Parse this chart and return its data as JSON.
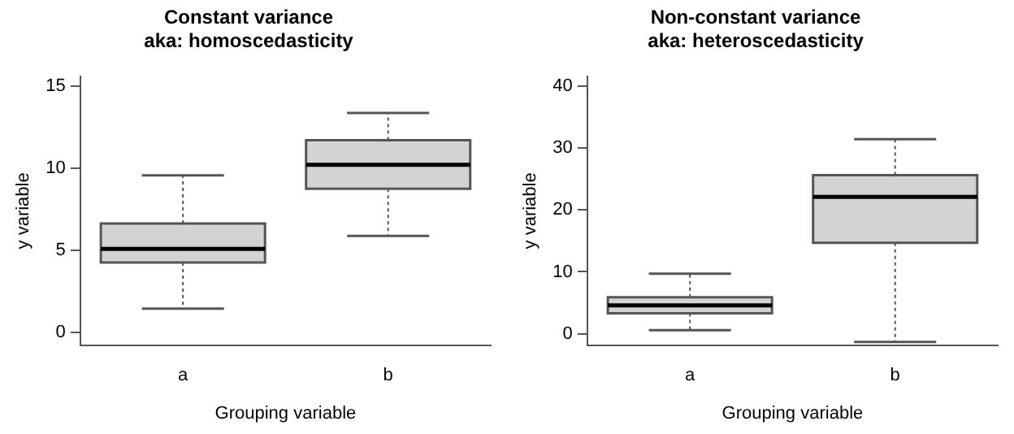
{
  "chart_data": [
    {
      "type": "box",
      "title": "Constant variance",
      "subtitle": "aka: homoscedasticity",
      "xlabel": "Grouping variable",
      "ylabel": "y variable",
      "categories": [
        "a",
        "b"
      ],
      "color": "#d3d3d3",
      "boxes": [
        {
          "low": 1.45,
          "q1": 4.25,
          "median": 5.08,
          "q3": 6.63,
          "high": 9.56
        },
        {
          "low": 5.87,
          "q1": 8.74,
          "median": 10.2,
          "q3": 11.7,
          "high": 13.35
        }
      ],
      "ylim": [
        -0.8,
        15.6
      ],
      "yticks": [
        0,
        5,
        10,
        15
      ],
      "grid": false,
      "legend": false
    },
    {
      "type": "box",
      "title": "Non-constant variance",
      "subtitle": "aka: heteroscedasticity",
      "xlabel": "Grouping variable",
      "ylabel": "y variable",
      "categories": [
        "a",
        "b"
      ],
      "color": "#d3d3d3",
      "boxes": [
        {
          "low": 0.6,
          "q1": 3.3,
          "median": 4.6,
          "q3": 5.9,
          "high": 9.7
        },
        {
          "low": -1.3,
          "q1": 14.7,
          "median": 22.1,
          "q3": 25.6,
          "high": 31.4
        }
      ],
      "ylim": [
        -1.9,
        41.6
      ],
      "yticks": [
        0,
        10,
        20,
        30,
        40
      ],
      "grid": false,
      "legend": false
    }
  ]
}
